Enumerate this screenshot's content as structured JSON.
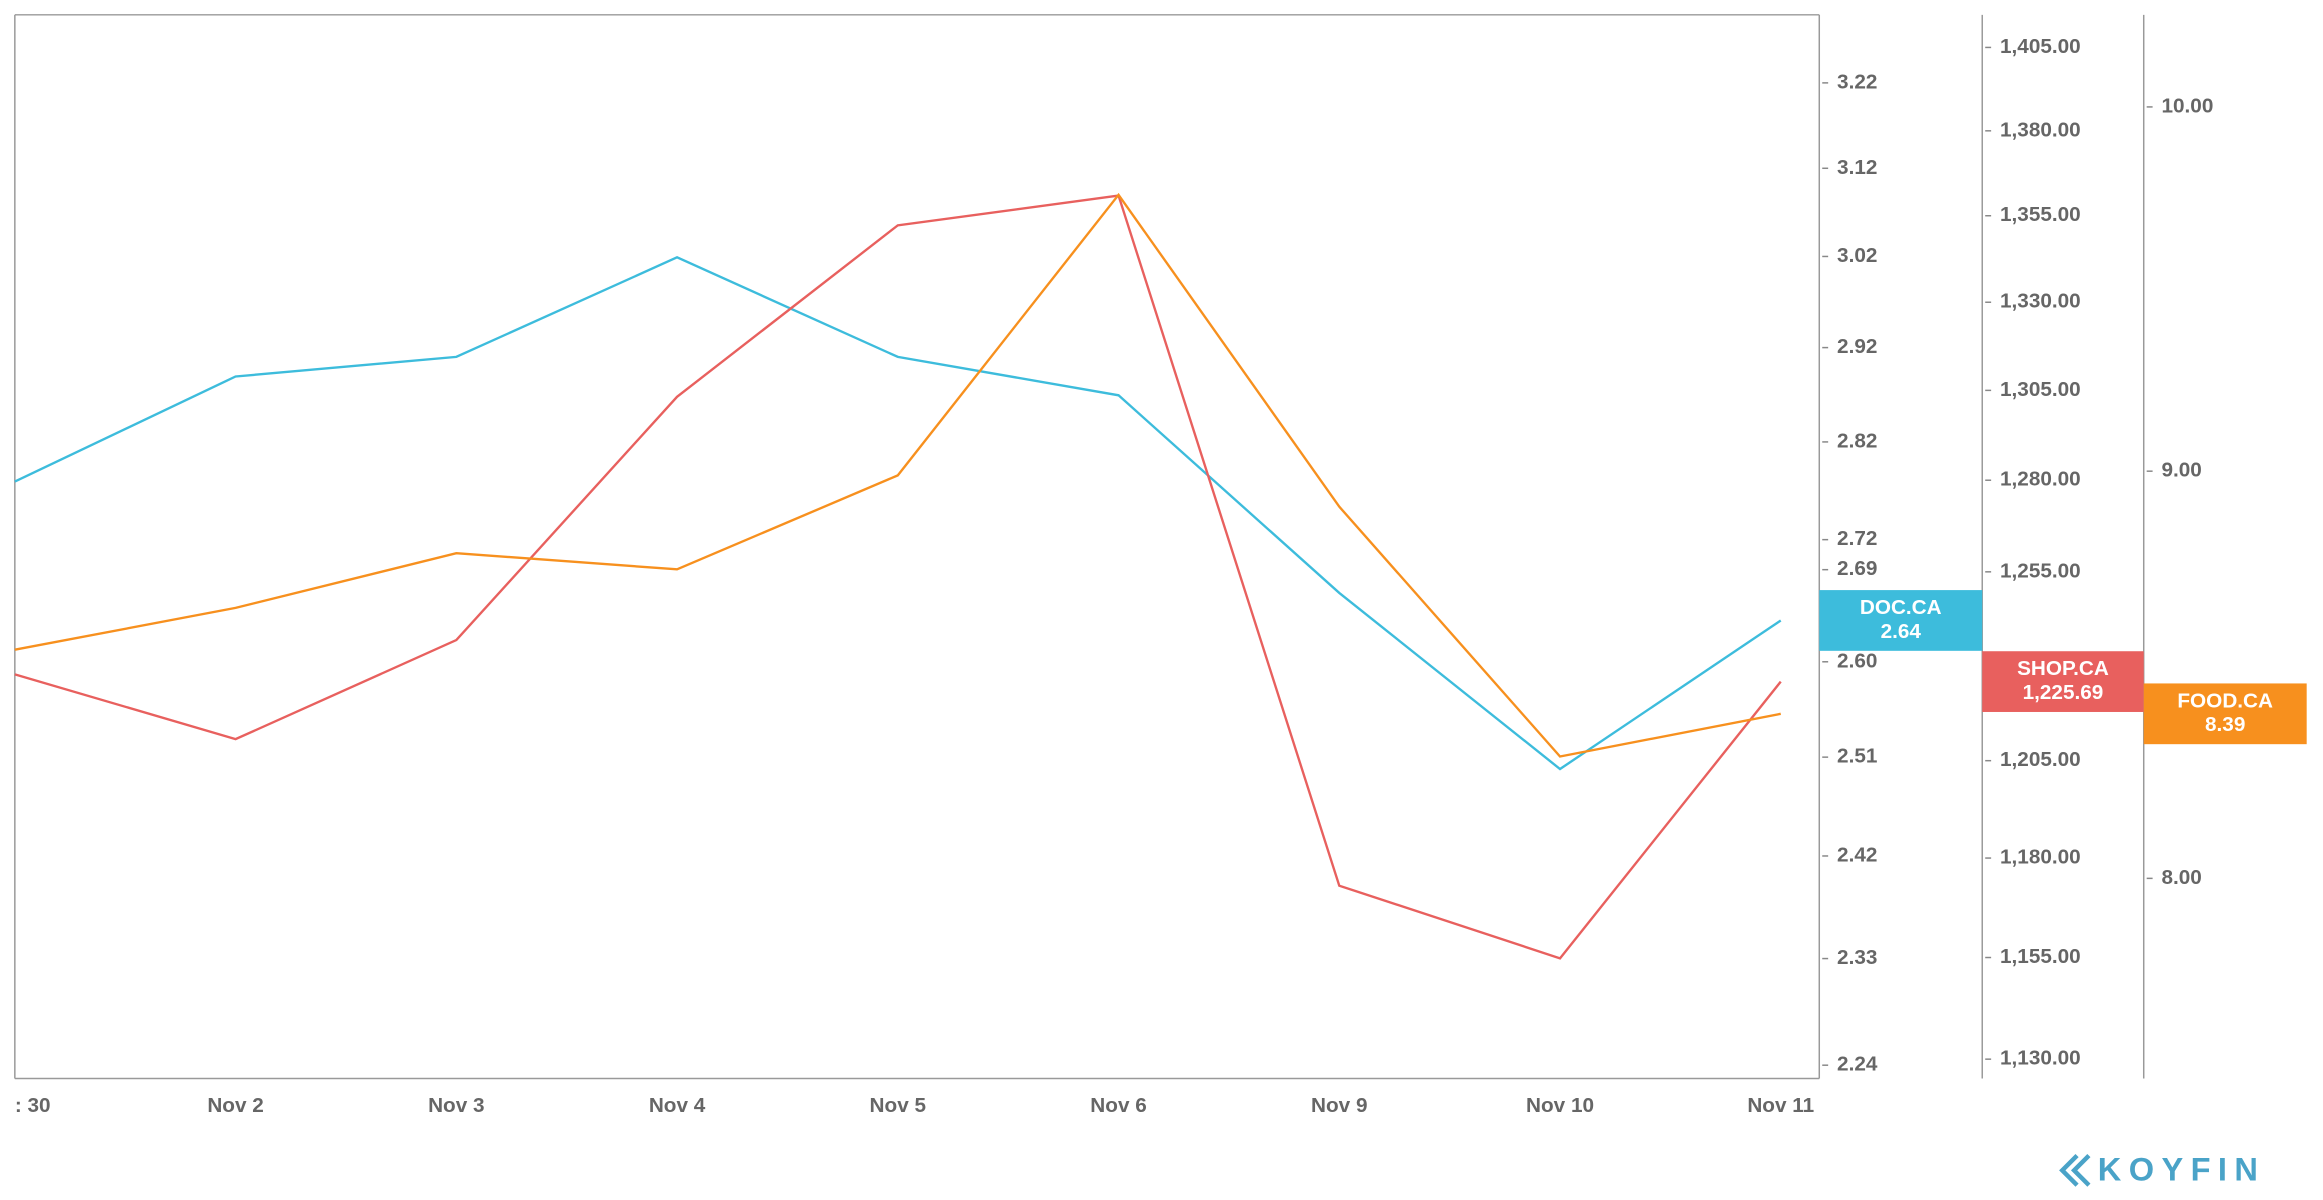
{
  "chart_data": {
    "type": "line",
    "log_scale": true,
    "categories": [
      ": 30",
      "Nov 2",
      "Nov 3",
      "Nov 4",
      "Nov 5",
      "Nov 6",
      "Nov 9",
      "Nov 10",
      "Nov 11"
    ],
    "series": [
      {
        "name": "DOC.CA",
        "color": "#3dbcdc",
        "axis": "y",
        "values": [
          2.779,
          2.889,
          2.91,
          3.019,
          2.91,
          2.869,
          2.667,
          2.499,
          2.64
        ]
      },
      {
        "name": "SHOP.CA",
        "color": "#e8605e",
        "axis": "y2",
        "values": [
          1227.6,
          1210.6,
          1236.7,
          1303.2,
          1352.2,
          1360.9,
          1173.0,
          1154.8,
          1225.69
        ],
        "value_labels": [
          null,
          null,
          null,
          null,
          null,
          null,
          null,
          null,
          "1,225.69"
        ]
      },
      {
        "name": "FOOD.CA",
        "color": "#f7901e",
        "axis": "y3",
        "values": [
          8.547,
          8.651,
          8.789,
          8.748,
          8.989,
          9.749,
          8.908,
          8.287,
          8.39
        ]
      }
    ],
    "ylim": [
      2.229,
      3.302
    ],
    "yticks": [
      {
        "value": 2.24,
        "label": "2.24"
      },
      {
        "value": 2.33,
        "label": "2.33"
      },
      {
        "value": 2.42,
        "label": "2.42"
      },
      {
        "value": 2.51,
        "label": "2.51"
      },
      {
        "value": 2.6,
        "label": "2.60"
      },
      {
        "value": 2.69,
        "label": "2.69"
      },
      {
        "value": 2.72,
        "label": "2.72"
      },
      {
        "value": 2.82,
        "label": "2.82"
      },
      {
        "value": 2.92,
        "label": "2.92"
      },
      {
        "value": 3.02,
        "label": "3.02"
      },
      {
        "value": 3.12,
        "label": "3.12"
      },
      {
        "value": 3.22,
        "label": "3.22"
      }
    ],
    "y2lim": [
      1125.3,
      1414.9
    ],
    "y2ticks": [
      {
        "value": 1130,
        "label": "1,130.00"
      },
      {
        "value": 1155,
        "label": "1,155.00"
      },
      {
        "value": 1180,
        "label": "1,180.00"
      },
      {
        "value": 1205,
        "label": "1,205.00"
      },
      {
        "value": 1255,
        "label": "1,255.00"
      },
      {
        "value": 1280,
        "label": "1,280.00"
      },
      {
        "value": 1305,
        "label": "1,305.00"
      },
      {
        "value": 1330,
        "label": "1,330.00"
      },
      {
        "value": 1355,
        "label": "1,355.00"
      },
      {
        "value": 1380,
        "label": "1,380.00"
      },
      {
        "value": 1405,
        "label": "1,405.00"
      }
    ],
    "y3lim": [
      7.55,
      10.27
    ],
    "y3ticks": [
      {
        "value": 8,
        "label": "8.00"
      },
      {
        "value": 9,
        "label": "9.00"
      },
      {
        "value": 10,
        "label": "10.00"
      }
    ],
    "brand": "KOYFIN"
  }
}
